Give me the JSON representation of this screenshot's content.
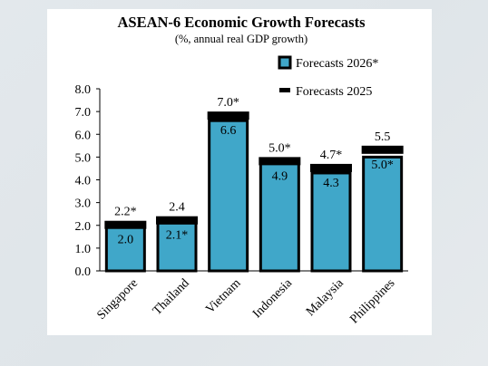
{
  "chart_data": {
    "type": "bar",
    "title": "ASEAN-6 Economic Growth Forecasts",
    "subtitle": "(%, annual real GDP growth)",
    "categories": [
      "Singapore",
      "Thailand",
      "Vietnam",
      "Indonesia",
      "Malaysia",
      "Philippines"
    ],
    "series": [
      {
        "name": "Forecasts 2026*",
        "values": [
          2.0,
          2.1,
          6.6,
          4.9,
          4.3,
          5.0
        ],
        "labels": [
          "2.0",
          "2.1*",
          "6.6",
          "4.9",
          "4.3",
          "5.0*"
        ],
        "color": "#40a7c9"
      },
      {
        "name": "Forecasts 2025",
        "values": [
          2.2,
          2.4,
          7.0,
          5.0,
          4.7,
          5.5
        ],
        "labels": [
          "2.2*",
          "2.4",
          "7.0*",
          "5.0*",
          "4.7*",
          "5.5"
        ],
        "color": "#000000"
      }
    ],
    "ylim": [
      0,
      8
    ],
    "yticks": [
      "0.0",
      "1.0",
      "2.0",
      "3.0",
      "4.0",
      "5.0",
      "6.0",
      "7.0",
      "8.0"
    ],
    "legend": "top-right",
    "grid": false
  }
}
